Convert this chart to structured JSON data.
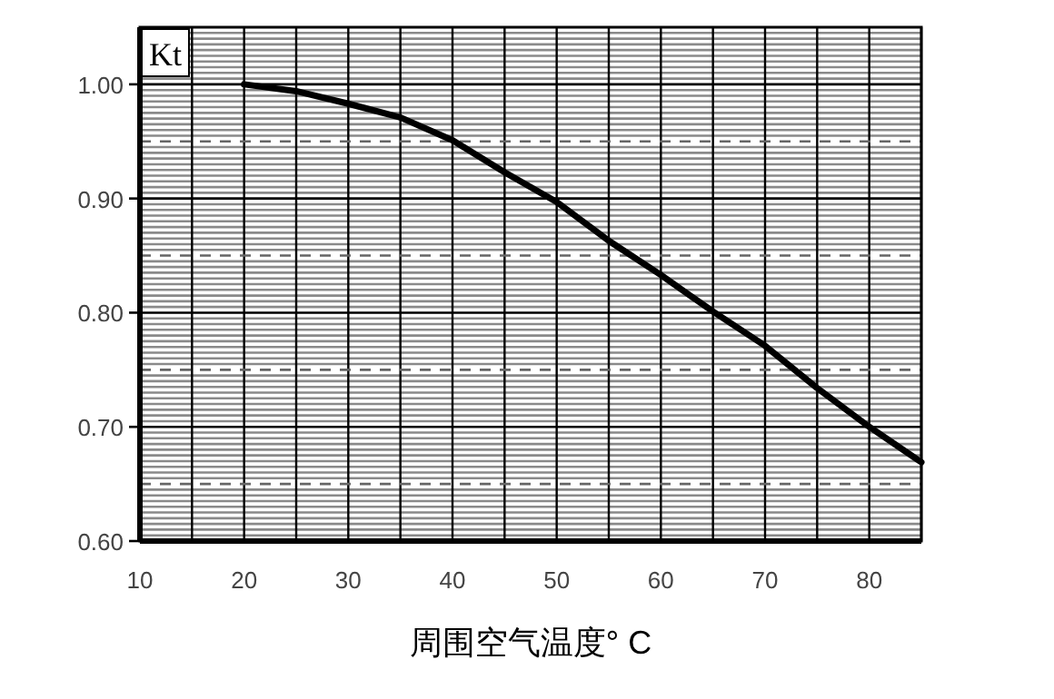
{
  "chart_data": {
    "type": "line",
    "xlabel": "周围空气温度° C",
    "ylabel": "Kt",
    "x": [
      20,
      25,
      30,
      35,
      40,
      45,
      50,
      55,
      60,
      65,
      70,
      75,
      80,
      85
    ],
    "series": [
      {
        "color": "#000000",
        "values": [
          1.0,
          0.994,
          0.983,
          0.971,
          0.951,
          0.923,
          0.897,
          0.863,
          0.833,
          0.801,
          0.771,
          0.734,
          0.7,
          0.669
        ]
      }
    ],
    "xlim": [
      10,
      85
    ],
    "xticks": [
      10,
      {
        "value": 15,
        "label": null
      },
      20,
      {
        "value": 25,
        "label": null
      },
      30,
      {
        "value": 35,
        "label": null
      },
      40,
      {
        "value": 45,
        "label": null
      },
      50,
      {
        "value": 55,
        "label": null
      },
      60,
      {
        "value": 65,
        "label": null
      },
      70,
      {
        "value": 75,
        "label": null
      },
      80,
      {
        "value": 85,
        "label": null
      }
    ],
    "ylim": [
      0.6,
      1.05
    ],
    "yticks": [
      {
        "value": 0.6,
        "label": "0.60"
      },
      {
        "value": 0.7,
        "label": "0.70"
      },
      {
        "value": 0.8,
        "label": "0.80"
      },
      {
        "value": 0.9,
        "label": "0.90"
      },
      {
        "value": 1.0,
        "label": "1.00"
      },
      {
        "value": 0.605,
        "label": null
      },
      {
        "value": 0.61,
        "label": null
      },
      {
        "value": 0.615,
        "label": null
      },
      {
        "value": 0.62,
        "label": null
      },
      {
        "value": 0.625,
        "label": null
      },
      {
        "value": 0.63,
        "label": null
      },
      {
        "value": 0.635,
        "label": null
      },
      {
        "value": 0.64,
        "label": null
      },
      {
        "value": 0.645,
        "label": null
      },
      {
        "value": 0.655,
        "label": null
      },
      {
        "value": 0.66,
        "label": null
      },
      {
        "value": 0.665,
        "label": null
      },
      {
        "value": 0.67,
        "label": null
      },
      {
        "value": 0.675,
        "label": null
      },
      {
        "value": 0.68,
        "label": null
      },
      {
        "value": 0.685,
        "label": null
      },
      {
        "value": 0.69,
        "label": null
      },
      {
        "value": 0.695,
        "label": null
      },
      {
        "value": 0.705,
        "label": null
      },
      {
        "value": 0.71,
        "label": null
      },
      {
        "value": 0.715,
        "label": null
      },
      {
        "value": 0.72,
        "label": null
      },
      {
        "value": 0.725,
        "label": null
      },
      {
        "value": 0.73,
        "label": null
      },
      {
        "value": 0.735,
        "label": null
      },
      {
        "value": 0.74,
        "label": null
      },
      {
        "value": 0.745,
        "label": null
      },
      {
        "value": 0.755,
        "label": null
      },
      {
        "value": 0.76,
        "label": null
      },
      {
        "value": 0.765,
        "label": null
      },
      {
        "value": 0.77,
        "label": null
      },
      {
        "value": 0.775,
        "label": null
      },
      {
        "value": 0.78,
        "label": null
      },
      {
        "value": 0.785,
        "label": null
      },
      {
        "value": 0.79,
        "label": null
      },
      {
        "value": 0.795,
        "label": null
      },
      {
        "value": 0.805,
        "label": null
      },
      {
        "value": 0.81,
        "label": null
      },
      {
        "value": 0.815,
        "label": null
      },
      {
        "value": 0.82,
        "label": null
      },
      {
        "value": 0.825,
        "label": null
      },
      {
        "value": 0.83,
        "label": null
      },
      {
        "value": 0.835,
        "label": null
      },
      {
        "value": 0.84,
        "label": null
      },
      {
        "value": 0.845,
        "label": null
      },
      {
        "value": 0.855,
        "label": null
      },
      {
        "value": 0.86,
        "label": null
      },
      {
        "value": 0.865,
        "label": null
      },
      {
        "value": 0.87,
        "label": null
      },
      {
        "value": 0.875,
        "label": null
      },
      {
        "value": 0.88,
        "label": null
      },
      {
        "value": 0.885,
        "label": null
      },
      {
        "value": 0.89,
        "label": null
      },
      {
        "value": 0.895,
        "label": null
      },
      {
        "value": 0.905,
        "label": null
      },
      {
        "value": 0.91,
        "label": null
      },
      {
        "value": 0.915,
        "label": null
      },
      {
        "value": 0.92,
        "label": null
      },
      {
        "value": 0.925,
        "label": null
      },
      {
        "value": 0.93,
        "label": null
      },
      {
        "value": 0.935,
        "label": null
      },
      {
        "value": 0.94,
        "label": null
      },
      {
        "value": 0.945,
        "label": null
      },
      {
        "value": 0.955,
        "label": null
      },
      {
        "value": 0.96,
        "label": null
      },
      {
        "value": 0.965,
        "label": null
      },
      {
        "value": 0.97,
        "label": null
      },
      {
        "value": 0.975,
        "label": null
      },
      {
        "value": 0.98,
        "label": null
      },
      {
        "value": 0.985,
        "label": null
      },
      {
        "value": 0.99,
        "label": null
      },
      {
        "value": 0.995,
        "label": null
      },
      {
        "value": 1.005,
        "label": null
      },
      {
        "value": 1.01,
        "label": null
      },
      {
        "value": 1.015,
        "label": null
      },
      {
        "value": 1.02,
        "label": null
      },
      {
        "value": 1.025,
        "label": null
      },
      {
        "value": 1.03,
        "label": null
      },
      {
        "value": 1.035,
        "label": null
      },
      {
        "value": 1.04,
        "label": null
      },
      {
        "value": 1.045,
        "label": null
      }
    ],
    "ref_lines": [
      {
        "axis": "y",
        "value": 0.65,
        "color": "#666666",
        "line_style": "dashed"
      },
      {
        "axis": "y",
        "value": 0.75,
        "color": "#666666",
        "line_style": "dashed"
      },
      {
        "axis": "y",
        "value": 0.85,
        "color": "#666666",
        "line_style": "dashed"
      },
      {
        "axis": "y",
        "value": 0.95,
        "color": "#666666",
        "line_style": "dashed"
      }
    ],
    "grid": true,
    "marker": "none",
    "line_style": "solid"
  }
}
